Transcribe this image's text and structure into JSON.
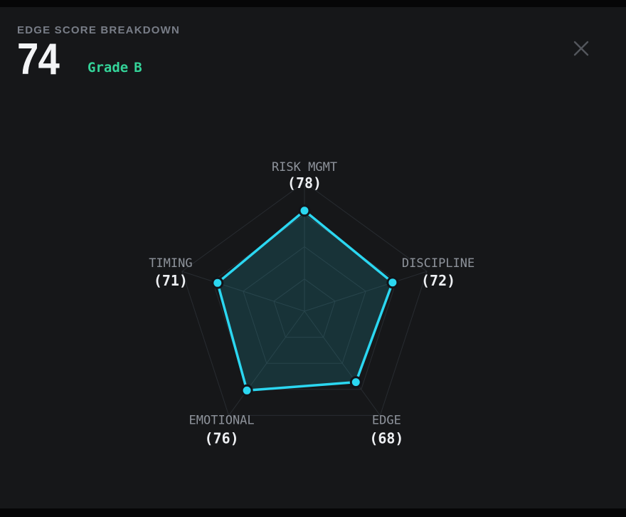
{
  "header": {
    "title": "EDGE SCORE BREAKDOWN",
    "score": "74",
    "grade_word": "Grade",
    "grade_letter": "B"
  },
  "colors": {
    "outer_background": "#060607",
    "panel_background": "#161719",
    "title_gray": "#787d87",
    "score_white": "#f3f4f6",
    "grade_green": "#34d399",
    "accent_cyan": "#2bd7f1",
    "radar_fill": "rgba(38,212,238,0.15)",
    "grid_line": "#282c31",
    "axis_label_gray": "#8e939b",
    "axis_value_white": "#eef0f3",
    "close_icon_gray": "#53565c"
  },
  "icons": {
    "close": "x-mark"
  },
  "chart_data": {
    "type": "radar",
    "title": "Edge score breakdown radar",
    "scale_max": 100,
    "grid_levels": [
      25,
      50,
      75,
      100
    ],
    "grid_shape": "pentagon",
    "axes": [
      {
        "label": "RISK MGMT",
        "value": 78,
        "value_label": "(78)"
      },
      {
        "label": "DISCIPLINE",
        "value": 72,
        "value_label": "(72)"
      },
      {
        "label": "EDGE",
        "value": 68,
        "value_label": "(68)"
      },
      {
        "label": "EMOTIONAL",
        "value": 76,
        "value_label": "(76)"
      },
      {
        "label": "TIMING",
        "value": 71,
        "value_label": "(71)"
      }
    ]
  }
}
